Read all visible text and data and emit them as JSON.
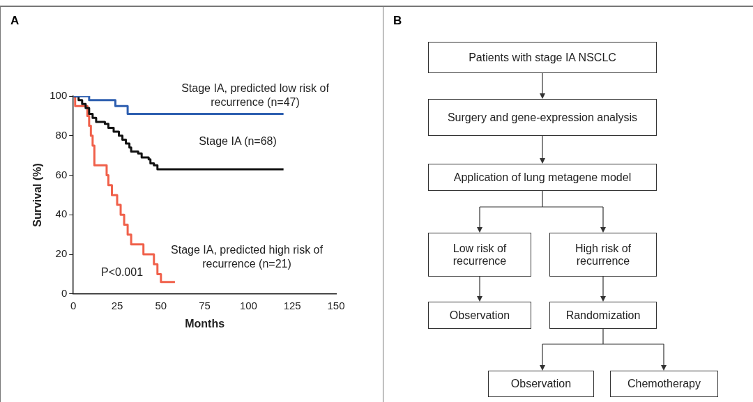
{
  "chart_data": [
    {
      "type": "step",
      "title": "A",
      "xlabel": "Months",
      "ylabel": "Survival (%)",
      "xlim": [
        0,
        150
      ],
      "ylim": [
        0,
        100
      ],
      "xticks": [
        0,
        25,
        50,
        75,
        100,
        125,
        150
      ],
      "yticks": [
        0,
        20,
        40,
        60,
        80,
        100
      ],
      "grid": false,
      "legend": false,
      "annotations": [
        "P<0.001"
      ],
      "series": [
        {
          "name": "Stage IA, predicted low risk of recurrence (n=47)",
          "color": "#2e5fb0",
          "x": [
            0,
            9,
            24,
            31,
            120
          ],
          "values": [
            100,
            98,
            95,
            91,
            91
          ]
        },
        {
          "name": "Stage IA (n=68)",
          "color": "#111111",
          "x": [
            0,
            3,
            5,
            7,
            9,
            11,
            13,
            18,
            20,
            23,
            26,
            28,
            30,
            32,
            33,
            37,
            39,
            43,
            44,
            46,
            48,
            120
          ],
          "values": [
            100,
            98,
            96,
            94,
            91,
            89,
            87,
            86,
            84,
            82,
            80,
            78,
            76,
            74,
            72,
            71,
            69,
            68,
            66,
            65,
            63,
            63
          ]
        },
        {
          "name": "Stage IA, predicted high risk of recurrence (n=21)",
          "color": "#f0604a",
          "x": [
            0,
            1,
            8,
            9,
            10,
            11,
            12,
            19,
            20,
            22,
            25,
            27,
            29,
            31,
            33,
            40,
            46,
            48,
            50,
            58
          ],
          "values": [
            100,
            95,
            90,
            85,
            80,
            75,
            65,
            60,
            55,
            50,
            45,
            40,
            35,
            30,
            25,
            20,
            15,
            10,
            6,
            6
          ]
        }
      ]
    },
    {
      "type": "other",
      "title": "B",
      "annotations": [
        "Patients with stage IA NSCLC",
        "Surgery and gene-expression analysis",
        "Application of lung metagene model",
        "Low risk of recurrence",
        "High risk of recurrence",
        "Observation",
        "Randomization",
        "Observation",
        "Chemotherapy"
      ]
    }
  ]
}
